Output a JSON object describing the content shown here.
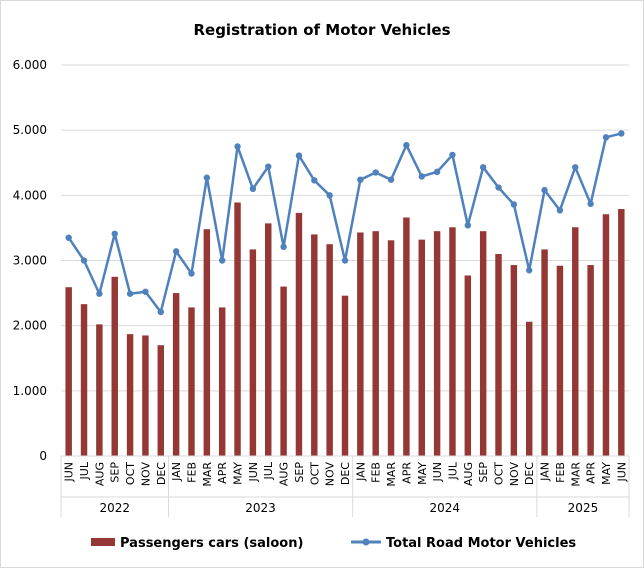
{
  "chart_data": {
    "type": "bar",
    "title": "Registration of Motor Vehicles",
    "xlabel": "",
    "ylabel": "",
    "ylim": [
      0,
      6000
    ],
    "yticks": [
      0,
      1000,
      2000,
      3000,
      4000,
      5000,
      6000
    ],
    "ytick_labels": [
      "0",
      "1.000",
      "2.000",
      "3.000",
      "4.000",
      "5.000",
      "6.000"
    ],
    "grid": true,
    "legend_position": "bottom",
    "categories": [
      "JUN",
      "JUL",
      "AUG",
      "SEP",
      "OCT",
      "NOV",
      "DEC",
      "JAN",
      "FEB",
      "MAR",
      "APR",
      "MAY",
      "JUN",
      "JUL",
      "AUG",
      "SEP",
      "OCT",
      "NOV",
      "DEC",
      "JAN",
      "FEB",
      "MAR",
      "APR",
      "MAY",
      "JUN",
      "JUL",
      "AUG",
      "SEP",
      "OCT",
      "NOV",
      "DEC",
      "JAN",
      "FEB",
      "MAR",
      "APR",
      "MAY",
      "JUN"
    ],
    "year_groups": [
      {
        "label": "2022",
        "count": 7
      },
      {
        "label": "2023",
        "count": 12
      },
      {
        "label": "2024",
        "count": 12
      },
      {
        "label": "2025",
        "count": 6
      }
    ],
    "series": [
      {
        "name": "Passengers cars (saloon)",
        "type": "bar",
        "color": "#953735",
        "values": [
          2590,
          2330,
          2020,
          2750,
          1870,
          1850,
          1700,
          2500,
          2280,
          3480,
          2280,
          3890,
          3170,
          3570,
          2600,
          3730,
          3400,
          3250,
          2460,
          3430,
          3450,
          3310,
          3660,
          3320,
          3450,
          3510,
          2770,
          3450,
          3100,
          2930,
          2060,
          3170,
          2920,
          3510,
          2930,
          3710,
          3790
        ]
      },
      {
        "name": "Total Road Motor Vehicles",
        "type": "line",
        "color": "#4f81bd",
        "values": [
          3350,
          3000,
          2490,
          3410,
          2490,
          2520,
          2210,
          3140,
          2800,
          4270,
          3000,
          4750,
          4100,
          4440,
          3210,
          4610,
          4230,
          4000,
          3000,
          4240,
          4350,
          4240,
          4770,
          4290,
          4360,
          4620,
          3540,
          4430,
          4120,
          3860,
          2850,
          4080,
          3770,
          4430,
          3870,
          4890,
          4950
        ]
      }
    ]
  }
}
